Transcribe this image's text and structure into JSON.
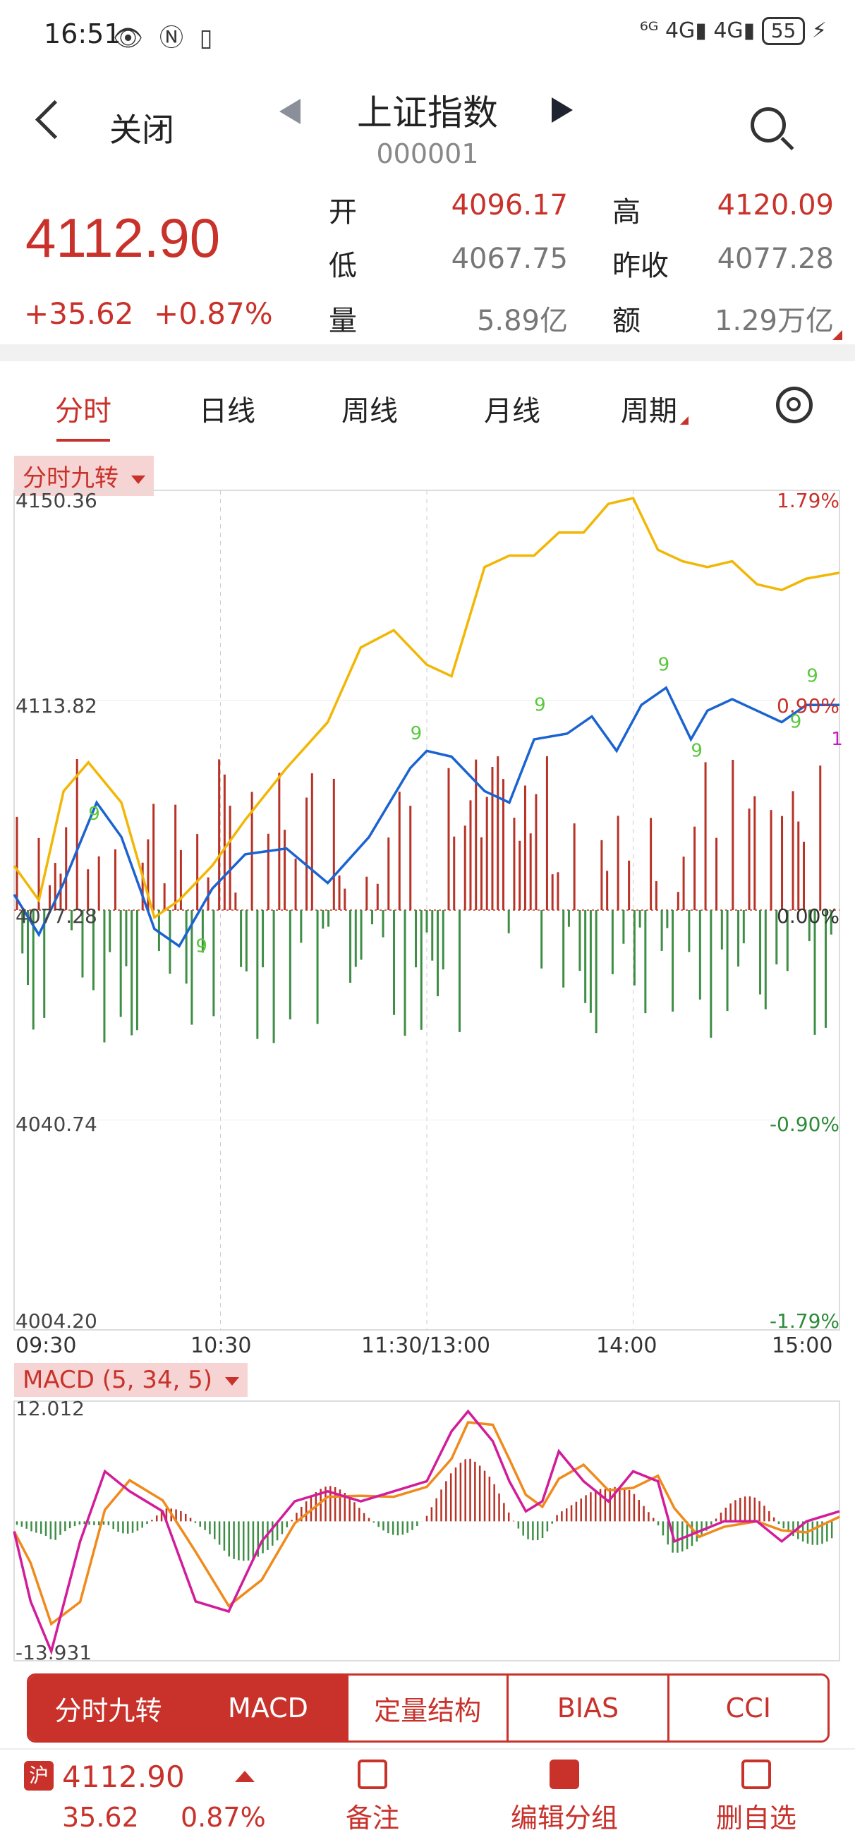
{
  "status_bar": {
    "time": "16:51",
    "left_icons": "👁 Ⓝ ▯",
    "right_text": "⁶ᴳ 4G▮ 4G▮",
    "battery": "55",
    "charging": "⚡"
  },
  "nav": {
    "close_label": "关闭",
    "title": "上证指数",
    "code": "000001"
  },
  "quote": {
    "price": "4112.90",
    "change": "+35.62",
    "change_pct": "+0.87%",
    "open_label": "开",
    "open": "4096.17",
    "high_label": "高",
    "high": "4120.09",
    "low_label": "低",
    "low": "4067.75",
    "prev_close_label": "昨收",
    "prev_close": "4077.28",
    "volume_label": "量",
    "volume": "5.89亿",
    "amount_label": "额",
    "amount": "1.29万亿"
  },
  "tabs": [
    "分时",
    "日线",
    "周线",
    "月线",
    "周期"
  ],
  "active_tab": "分时",
  "main_chart": {
    "indicator_label": "分时九转",
    "y_left": [
      "4150.36",
      "4113.82",
      "4077.28",
      "4040.74",
      "4004.20"
    ],
    "y_right": [
      "1.79%",
      "0.90%",
      "0.00%",
      "-0.90%",
      "-1.79%"
    ],
    "x_labels": [
      "09:30",
      "10:30",
      "11:30/13:00",
      "14:00",
      "15:00"
    ],
    "nine_marks": [
      "9",
      "9",
      "9",
      "9",
      "9",
      "9",
      "9",
      "9",
      "9",
      "1"
    ]
  },
  "macd": {
    "label": "MACD (5, 34, 5)",
    "y_top": "12.012",
    "y_bottom": "-13.931"
  },
  "indicator_tabs": [
    "分时九转",
    "MACD",
    "定量结构",
    "BIAS",
    "CCI"
  ],
  "footer": {
    "market_badge": "沪",
    "price": "4112.90",
    "change": "35.62",
    "change_pct": "0.87%",
    "actions": [
      "备注",
      "编辑分组",
      "删自选"
    ]
  },
  "chart_data": {
    "type": "line",
    "title": "",
    "x_labels": [
      "09:30",
      "10:30",
      "11:30/13:00",
      "14:00",
      "15:00"
    ],
    "ylim": [
      4004.2,
      4150.36
    ],
    "reference": 4077.28,
    "series": [
      {
        "color": "#1a63d0",
        "x": [
          0,
          0.03,
          0.06,
          0.1,
          0.13,
          0.17,
          0.2,
          0.24,
          0.28,
          0.33,
          0.38,
          0.43,
          0.48,
          0.5,
          0.53,
          0.57,
          0.6,
          0.63,
          0.67,
          0.7,
          0.73,
          0.76,
          0.79,
          0.82,
          0.84,
          0.87,
          0.9,
          0.93,
          0.96,
          1.0
        ],
        "y": [
          4080,
          4073,
          4082,
          4096,
          4090,
          4074,
          4071,
          4081,
          4087,
          4088,
          4082,
          4090,
          4102,
          4105,
          4104,
          4098,
          4096,
          4107,
          4108,
          4111,
          4105,
          4113,
          4116,
          4107,
          4112,
          4114,
          4112,
          4110,
          4113,
          4113
        ]
      },
      {
        "color": "#f2b705",
        "x": [
          0,
          0.03,
          0.06,
          0.09,
          0.13,
          0.17,
          0.2,
          0.24,
          0.28,
          0.33,
          0.38,
          0.42,
          0.46,
          0.5,
          0.53,
          0.57,
          0.6,
          0.63,
          0.66,
          0.69,
          0.72,
          0.75,
          0.78,
          0.81,
          0.84,
          0.87,
          0.9,
          0.93,
          0.96,
          1.0
        ],
        "y": [
          4085,
          4079,
          4098,
          4103,
          4096,
          4076,
          4079,
          4085,
          4093,
          4102,
          4110,
          4123,
          4126,
          4120,
          4118,
          4137,
          4139,
          4139,
          4143,
          4143,
          4148,
          4149,
          4140,
          4138,
          4137,
          4138,
          4134,
          4133,
          4135,
          4136
        ]
      }
    ]
  }
}
